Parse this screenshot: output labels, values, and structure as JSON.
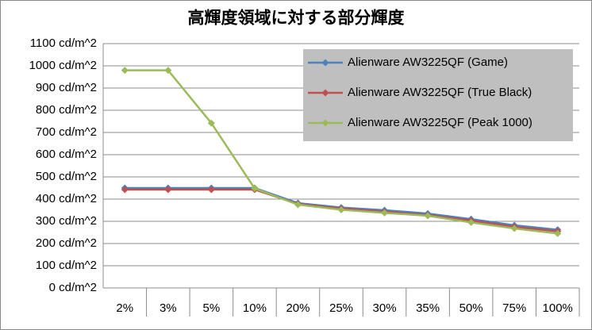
{
  "chart_data": {
    "type": "line",
    "title": "高輝度領域に対する部分輝度",
    "categories": [
      "2%",
      "3%",
      "5%",
      "10%",
      "20%",
      "25%",
      "30%",
      "35%",
      "50%",
      "75%",
      "100%"
    ],
    "series": [
      {
        "name": "Alienware AW3225QF (Game)",
        "color": "#4f81bd",
        "values": [
          450,
          450,
          450,
          450,
          382,
          362,
          350,
          335,
          310,
          282,
          262
        ]
      },
      {
        "name": "Alienware AW3225QF (True Black)",
        "color": "#c0504d",
        "values": [
          443,
          443,
          443,
          443,
          378,
          357,
          343,
          328,
          303,
          275,
          255
        ]
      },
      {
        "name": "Alienware AW3225QF (Peak 1000)",
        "color": "#9bbb59",
        "values": [
          980,
          980,
          742,
          448,
          375,
          352,
          338,
          325,
          295,
          268,
          245
        ]
      }
    ],
    "ylim": [
      0,
      1100
    ],
    "yticks": [
      {
        "value": 0,
        "label": "0 cd/m^2"
      },
      {
        "value": 100,
        "label": "100 cd/m^2"
      },
      {
        "value": 200,
        "label": "200 cd/m^2"
      },
      {
        "value": 300,
        "label": "300 cd/m^2"
      },
      {
        "value": 400,
        "label": "400 cd/m^2"
      },
      {
        "value": 500,
        "label": "500 cd/m^2"
      },
      {
        "value": 600,
        "label": "600 cd/m^2"
      },
      {
        "value": 700,
        "label": "700 cd/m^2"
      },
      {
        "value": 800,
        "label": "800 cd/m^2"
      },
      {
        "value": 900,
        "label": "900 cd/m^2"
      },
      {
        "value": 1000,
        "label": "1000 cd/m^2"
      },
      {
        "value": 1100,
        "label": "1100 cd/m^2"
      }
    ],
    "grid": true,
    "legend": "top-right"
  }
}
